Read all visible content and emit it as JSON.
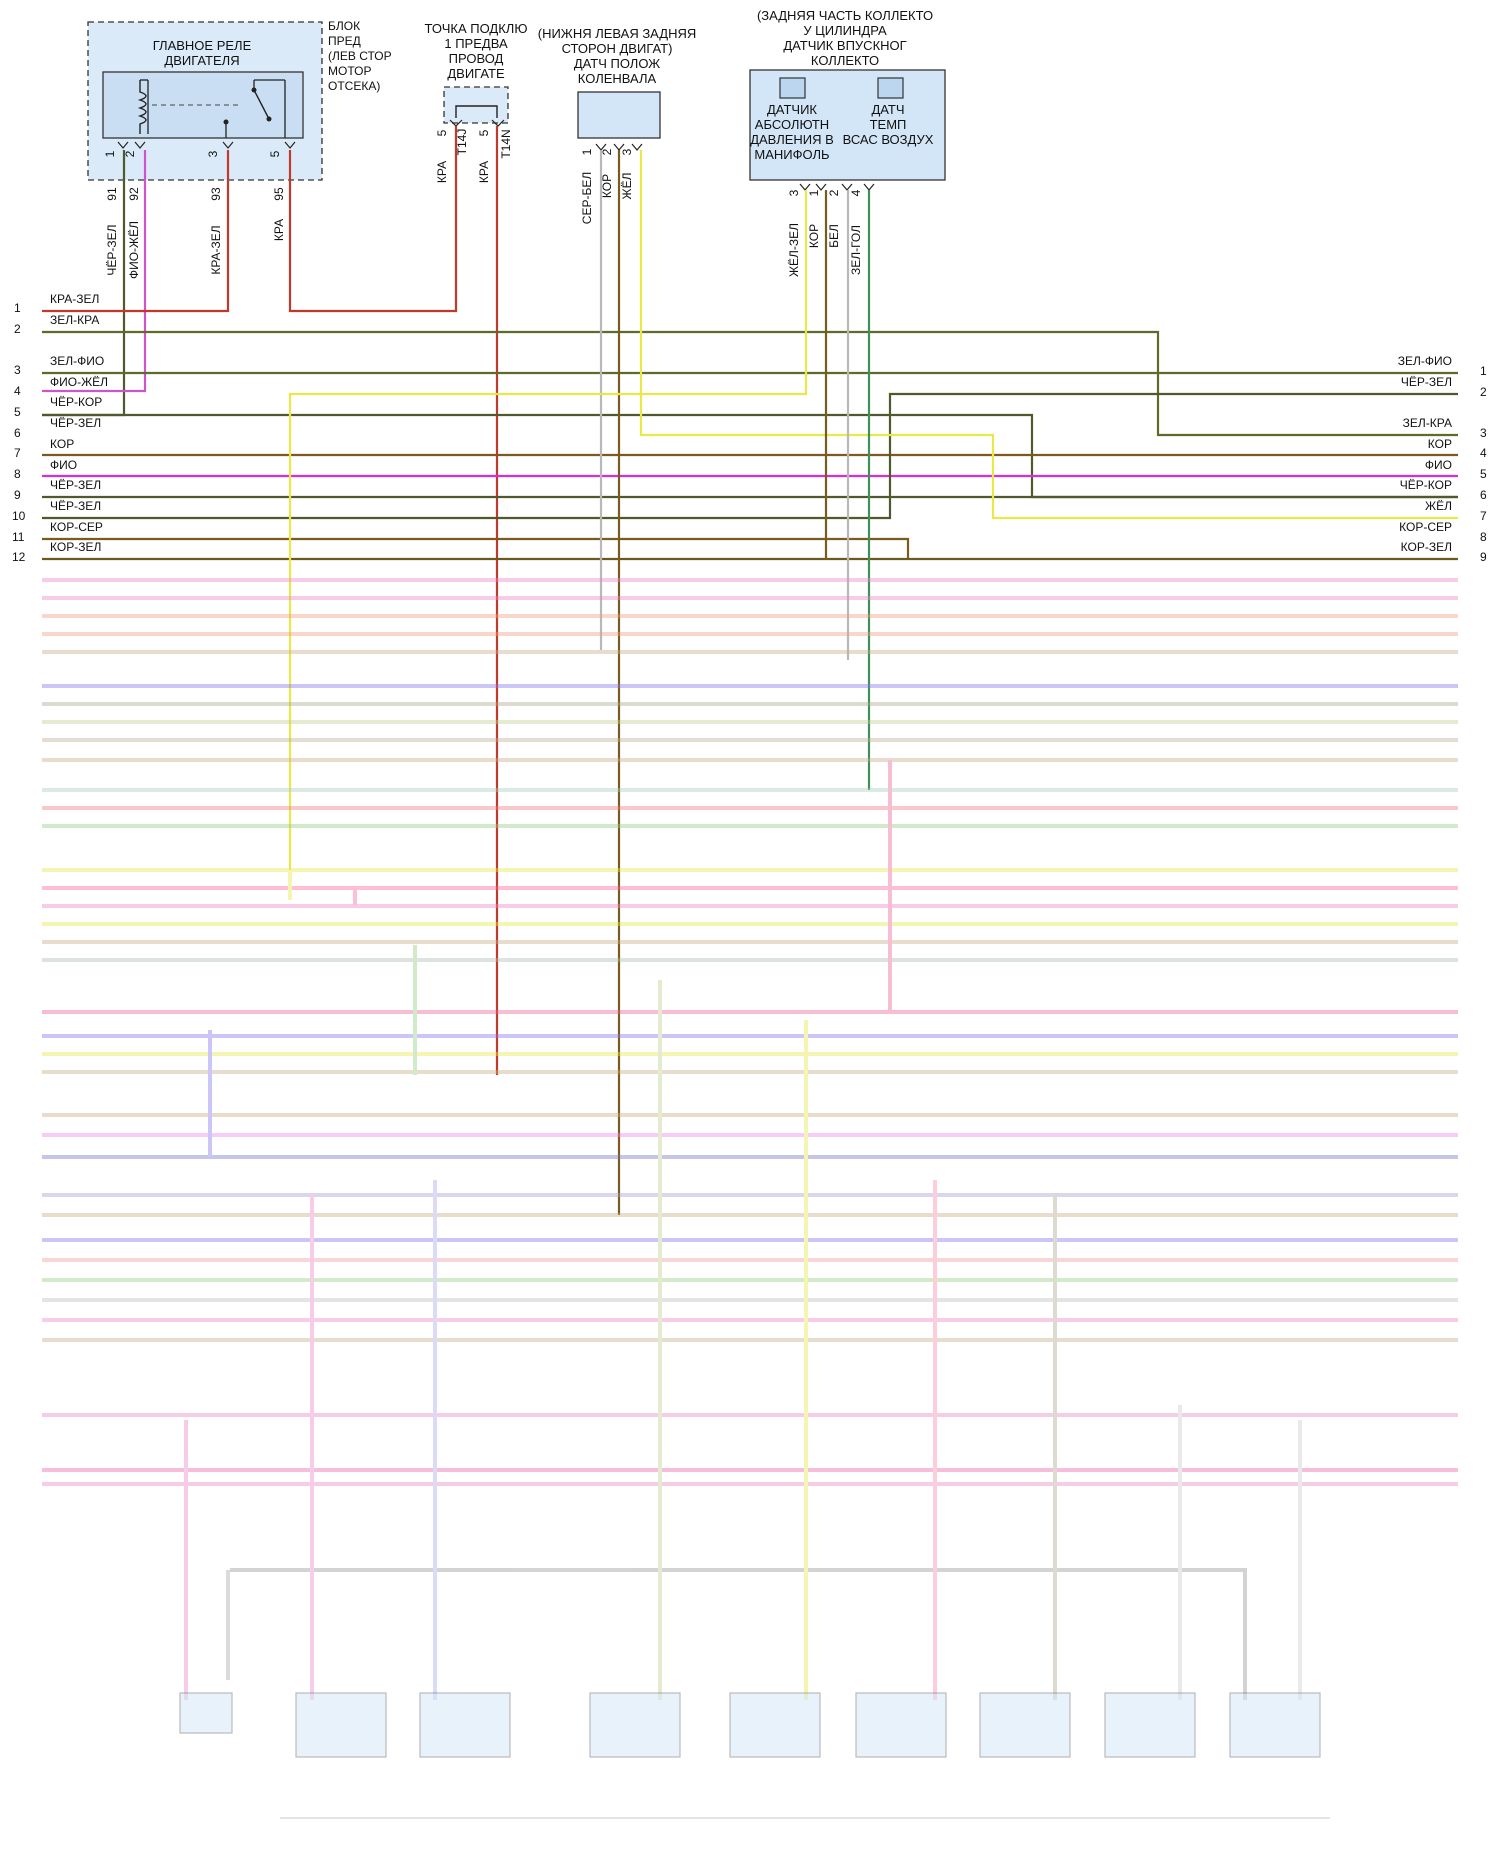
{
  "components": {
    "main_relay": {
      "title": [
        "ГЛАВНОЕ РЕЛЕ",
        "ДВИГАТЕЛЯ"
      ],
      "location": [
        "БЛОК",
        "ПРЕД",
        "(ЛЕВ СТОР",
        "МОТОР",
        "ОТСЕКА)"
      ],
      "pins": [
        "1",
        "2",
        "3",
        "5"
      ],
      "circuits": [
        "91",
        "92",
        "93",
        "95"
      ],
      "wires": [
        "ЧЁР-ЗЕЛ",
        "ФИО-ЖЁЛ",
        "КРА-ЗЕЛ",
        "КРА"
      ]
    },
    "splice": {
      "title": [
        "ТОЧКА ПОДКЛЮ",
        "1 ПРЕДВА",
        "ПРОВОД",
        "ДВИГАТЕ"
      ],
      "pins": [
        "5",
        "5"
      ],
      "connectors": [
        "T14J",
        "T14N"
      ],
      "wires": [
        "КРА",
        "КРА"
      ]
    },
    "crank_sensor": {
      "location": [
        "(НИЖНЯ ЛЕВАЯ ЗАДНЯЯ",
        "СТОРОН ДВИГАТ)"
      ],
      "title": [
        "ДАТЧ ПОЛОЖ",
        "КОЛЕНВАЛА"
      ],
      "pins": [
        "1",
        "2",
        "3"
      ],
      "wires": [
        "СЕР-БЕЛ",
        "КОР",
        "ЖЁЛ"
      ]
    },
    "manifold_sensor": {
      "location": [
        "(ЗАДНЯЯ ЧАСТЬ КОЛЛЕКТО",
        "У ЦИЛИНДРА"
      ],
      "title": [
        "ДАТЧИК ВПУСКНОГ",
        "КОЛЛЕКТО"
      ],
      "map_label": [
        "ДАТЧИК",
        "АБСОЛЮТН",
        "ДАВЛЕНИЯ В",
        "МАНИФОЛЬ"
      ],
      "iat_label": [
        "ДАТЧ",
        "ТЕМП",
        "ВСАС ВОЗДУХ"
      ],
      "pins": [
        "3",
        "1",
        "2",
        "4"
      ],
      "wires": [
        "ЖЁЛ-ЗЕЛ",
        "КОР",
        "БЕЛ",
        "ЗЕЛ-ГОЛ"
      ]
    }
  },
  "left_rows": [
    {
      "num": "1",
      "wire": "КРА-ЗЕЛ"
    },
    {
      "num": "2",
      "wire": "ЗЕЛ-КРА"
    },
    {
      "num": "3",
      "wire": "ЗЕЛ-ФИО"
    },
    {
      "num": "4",
      "wire": "ФИО-ЖЁЛ"
    },
    {
      "num": "5",
      "wire": "ЧЁР-КОР"
    },
    {
      "num": "6",
      "wire": "ЧЁР-ЗЕЛ"
    },
    {
      "num": "7",
      "wire": "КОР"
    },
    {
      "num": "8",
      "wire": "ФИО"
    },
    {
      "num": "9",
      "wire": "ЧЁР-ЗЕЛ"
    },
    {
      "num": "10",
      "wire": "ЧЁР-ЗЕЛ"
    },
    {
      "num": "11",
      "wire": "КОР-СЕР"
    },
    {
      "num": "12",
      "wire": "КОР-ЗЕЛ"
    }
  ],
  "right_rows": [
    {
      "num": "1",
      "wire": "ЗЕЛ-ФИО"
    },
    {
      "num": "2",
      "wire": "ЧЁР-ЗЕЛ"
    },
    {
      "num": "3",
      "wire": "ЗЕЛ-КРА"
    },
    {
      "num": "4",
      "wire": "КОР"
    },
    {
      "num": "5",
      "wire": "ФИО"
    },
    {
      "num": "6",
      "wire": "ЧЁР-КОР"
    },
    {
      "num": "7",
      "wire": "ЖЁЛ"
    },
    {
      "num": "8",
      "wire": "КОР-СЕР"
    },
    {
      "num": "9",
      "wire": "КОР-ЗЕЛ"
    }
  ],
  "colors": {
    "red": "#c0392b",
    "olive": "#5e6b2a",
    "magenta": "#d52fd5",
    "pink": "#cc55cc",
    "yellow": "#e8e84a",
    "brown": "#7a5a1e",
    "dark_olive": "#4f5a2c",
    "gray": "#b8b8b8",
    "green": "#3f8f5a",
    "box_fill": "#d3e6f7"
  }
}
